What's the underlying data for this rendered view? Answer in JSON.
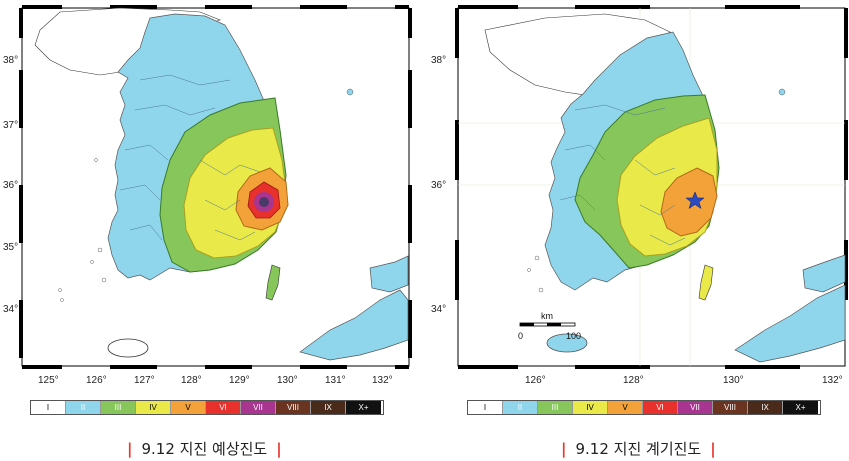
{
  "maps": {
    "predicted": {
      "lat_labels": [
        "38°",
        "37°",
        "36°",
        "35°",
        "34°"
      ],
      "lon_labels": [
        "125°",
        "126°",
        "127°",
        "128°",
        "129°",
        "130°",
        "131°",
        "132°"
      ],
      "caption": "9.12 지진 예상진도"
    },
    "measured": {
      "lat_labels": [
        "38°",
        "36°",
        "34°"
      ],
      "lon_labels": [
        "126°",
        "128°",
        "130°",
        "132°"
      ],
      "scale_unit": "km",
      "scale_min": "0",
      "scale_max": "100",
      "caption": "9.12 지진 계기진도"
    }
  },
  "legend": [
    {
      "label": "I",
      "color": "#ffffff",
      "text_color": "#000000"
    },
    {
      "label": "II",
      "color": "#8fd6ec",
      "text_color": "#ffffff"
    },
    {
      "label": "III",
      "color": "#86c65a",
      "text_color": "#ffffff"
    },
    {
      "label": "IV",
      "color": "#e9e94a",
      "text_color": "#000000"
    },
    {
      "label": "V",
      "color": "#f3a23a",
      "text_color": "#000000"
    },
    {
      "label": "VI",
      "color": "#e8302c",
      "text_color": "#ffffff"
    },
    {
      "label": "VII",
      "color": "#a8358f",
      "text_color": "#ffffff"
    },
    {
      "label": "VIII",
      "color": "#6b3420",
      "text_color": "#ffffff"
    },
    {
      "label": "IX",
      "color": "#4a2a1a",
      "text_color": "#ffffff"
    },
    {
      "label": "X+",
      "color": "#111111",
      "text_color": "#ffffff"
    }
  ]
}
